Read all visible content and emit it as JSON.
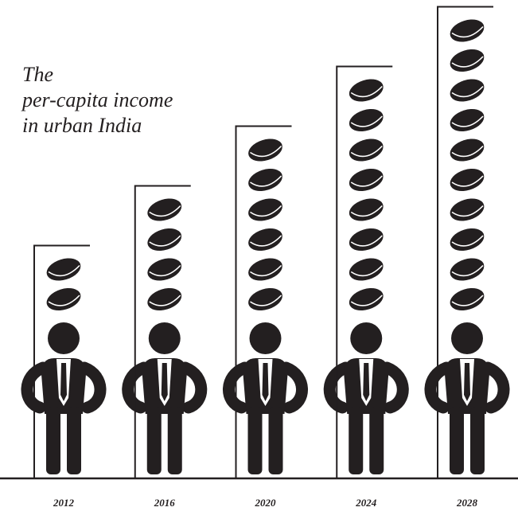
{
  "chart_data": {
    "type": "pictograph",
    "title": [
      "The",
      "per-capita income",
      "in urban India"
    ],
    "categories": [
      "2012",
      "2016",
      "2020",
      "2024",
      "2028"
    ],
    "values": [
      2,
      4,
      6,
      8,
      10
    ],
    "color": "#231f20"
  }
}
